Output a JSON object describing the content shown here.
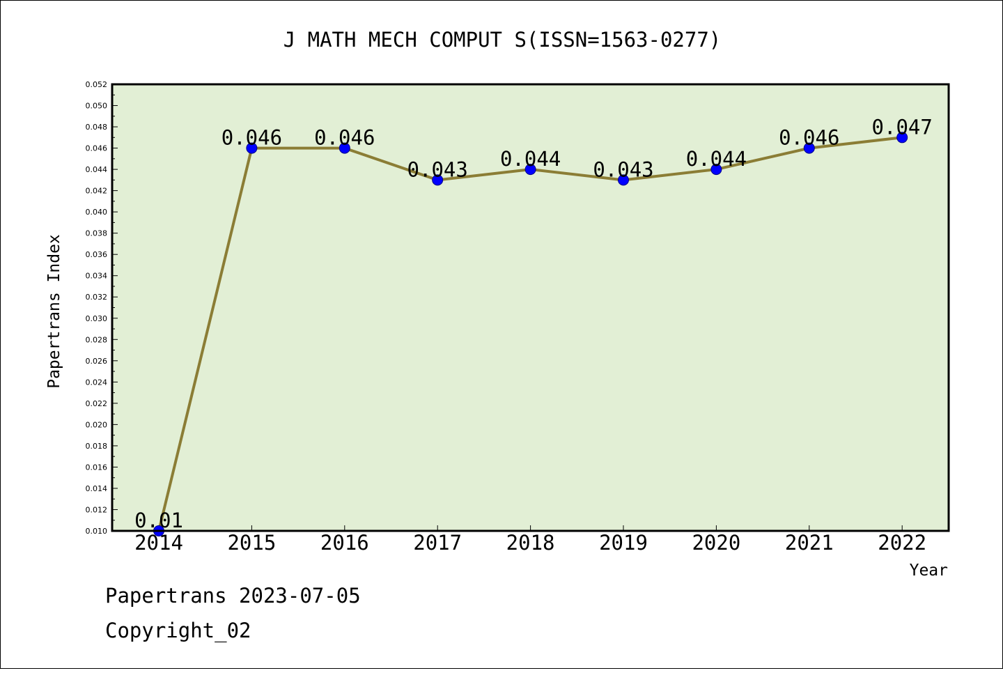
{
  "chart_data": {
    "type": "line",
    "title": "J MATH MECH COMPUT S(ISSN=1563-0277)",
    "xlabel": "Year",
    "ylabel": "Papertrans Index",
    "categories": [
      "2014",
      "2015",
      "2016",
      "2017",
      "2018",
      "2019",
      "2020",
      "2021",
      "2022"
    ],
    "series": [
      {
        "values": [
          0.01,
          0.046,
          0.046,
          0.043,
          0.044,
          0.043,
          0.044,
          0.046,
          0.047
        ]
      }
    ],
    "data_labels": [
      "0.01",
      "0.046",
      "0.046",
      "0.043",
      "0.044",
      "0.043",
      "0.044",
      "0.046",
      "0.047"
    ],
    "ylim": [
      0.01,
      0.052
    ],
    "ytick_step": 0.002,
    "yticks": [
      "0.010",
      "0.012",
      "0.014",
      "0.016",
      "0.018",
      "0.020",
      "0.022",
      "0.024",
      "0.026",
      "0.028",
      "0.030",
      "0.032",
      "0.034",
      "0.036",
      "0.038",
      "0.040",
      "0.042",
      "0.044",
      "0.046",
      "0.048",
      "0.050",
      "0.052"
    ],
    "grid": false,
    "colors": {
      "plot_background": "#e2efd5",
      "line": "#8b7d35",
      "marker": "#0000ff"
    }
  },
  "footer": {
    "date_line": "Papertrans 2023-07-05",
    "copyright": "Copyright_02"
  }
}
